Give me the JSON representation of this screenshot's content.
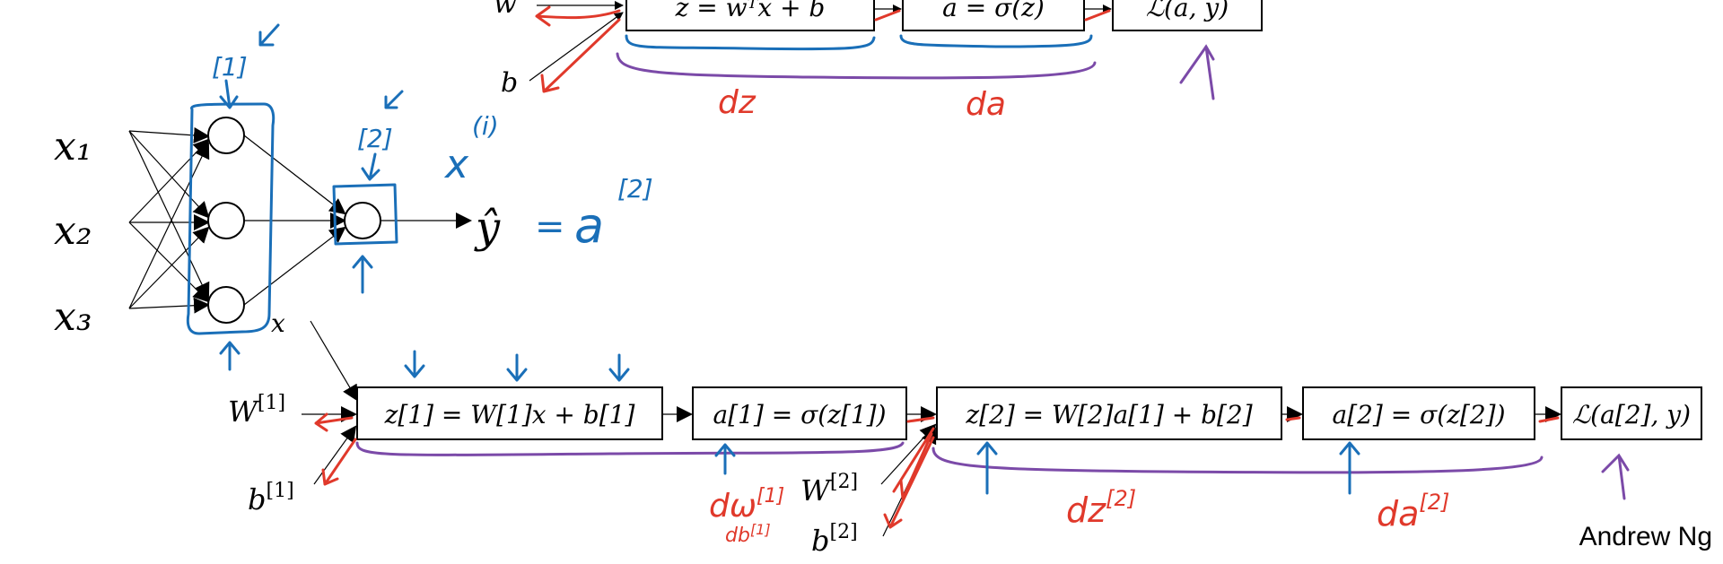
{
  "colors": {
    "ink": "#000000",
    "annotation_blue": "#1a6fb8",
    "annotation_red": "#e0392b",
    "annotation_purple": "#7b4aa8"
  },
  "top_graph": {
    "input_w": "w",
    "input_b": "b",
    "box_z": "z = wᵀx + b",
    "box_a": "a = σ(z)",
    "box_loss": "ℒ(a, y)",
    "label_dz": "dz",
    "label_da": "da"
  },
  "network": {
    "inputs": [
      "x₁",
      "x₂",
      "x₃"
    ],
    "output": "ŷ",
    "equals": "=",
    "a": "a",
    "superscript_layer1": "[1]",
    "superscript_layer2": "[2]",
    "x_i_x": "x",
    "x_i_sup": "(i)",
    "x_label": "x"
  },
  "bottom_graph": {
    "input_w1": "W",
    "input_w1_sup": "[1]",
    "input_b1": "b",
    "input_b1_sup": "[1]",
    "box_z1": "z[1] = W[1]x + b[1]",
    "box_a1": "a[1] = σ(z[1])",
    "input_w2": "W",
    "input_w2_sup": "[2]",
    "input_b2": "b",
    "input_b2_sup": "[2]",
    "box_z2": "z[2] = W[2]a[1] + b[2]",
    "box_a2": "a[2] = σ(z[2])",
    "box_loss": "ℒ(a[2], y)",
    "label_dw1": "dω",
    "label_dw1_sup": "[1]",
    "label_db1": "db",
    "label_db1_sup": "[1]",
    "label_dz2": "dz",
    "label_dz2_sup": "[2]",
    "label_da2": "da",
    "label_da2_sup": "[2]"
  },
  "footer": {
    "author": "Andrew Ng"
  }
}
